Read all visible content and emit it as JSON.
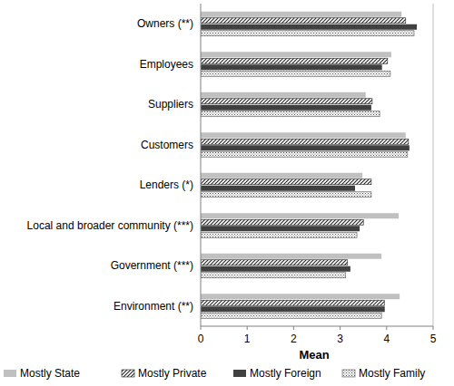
{
  "chart_data": {
    "type": "bar",
    "orientation": "horizontal",
    "categories": [
      "Owners (**)",
      "Employees",
      "Suppliers",
      "Customers",
      "Lenders (*)",
      "Local and broader community (***)",
      "Government (***)",
      "Environment (**)"
    ],
    "series": [
      {
        "name": "Mostly State",
        "color": "#c0c0c0",
        "values": [
          4.32,
          4.1,
          3.55,
          4.41,
          3.48,
          4.26,
          3.89,
          4.28
        ]
      },
      {
        "name": "Mostly Private",
        "color": "#222222",
        "values": [
          4.41,
          4.02,
          3.69,
          4.47,
          3.67,
          3.5,
          3.16,
          3.95
        ]
      },
      {
        "name": "Mostly Foreign",
        "color": "#404040",
        "values": [
          4.65,
          3.9,
          3.67,
          4.49,
          3.32,
          3.42,
          3.22,
          3.96
        ]
      },
      {
        "name": "Mostly Family",
        "color": "#555555",
        "values": [
          4.59,
          4.08,
          3.85,
          4.45,
          3.67,
          3.36,
          3.12,
          3.89
        ]
      }
    ],
    "xlabel": "Mean",
    "xlim": [
      0,
      5
    ],
    "xticks": [
      0,
      1,
      2,
      3,
      4,
      5
    ],
    "grid": false,
    "legend": "bottom"
  }
}
